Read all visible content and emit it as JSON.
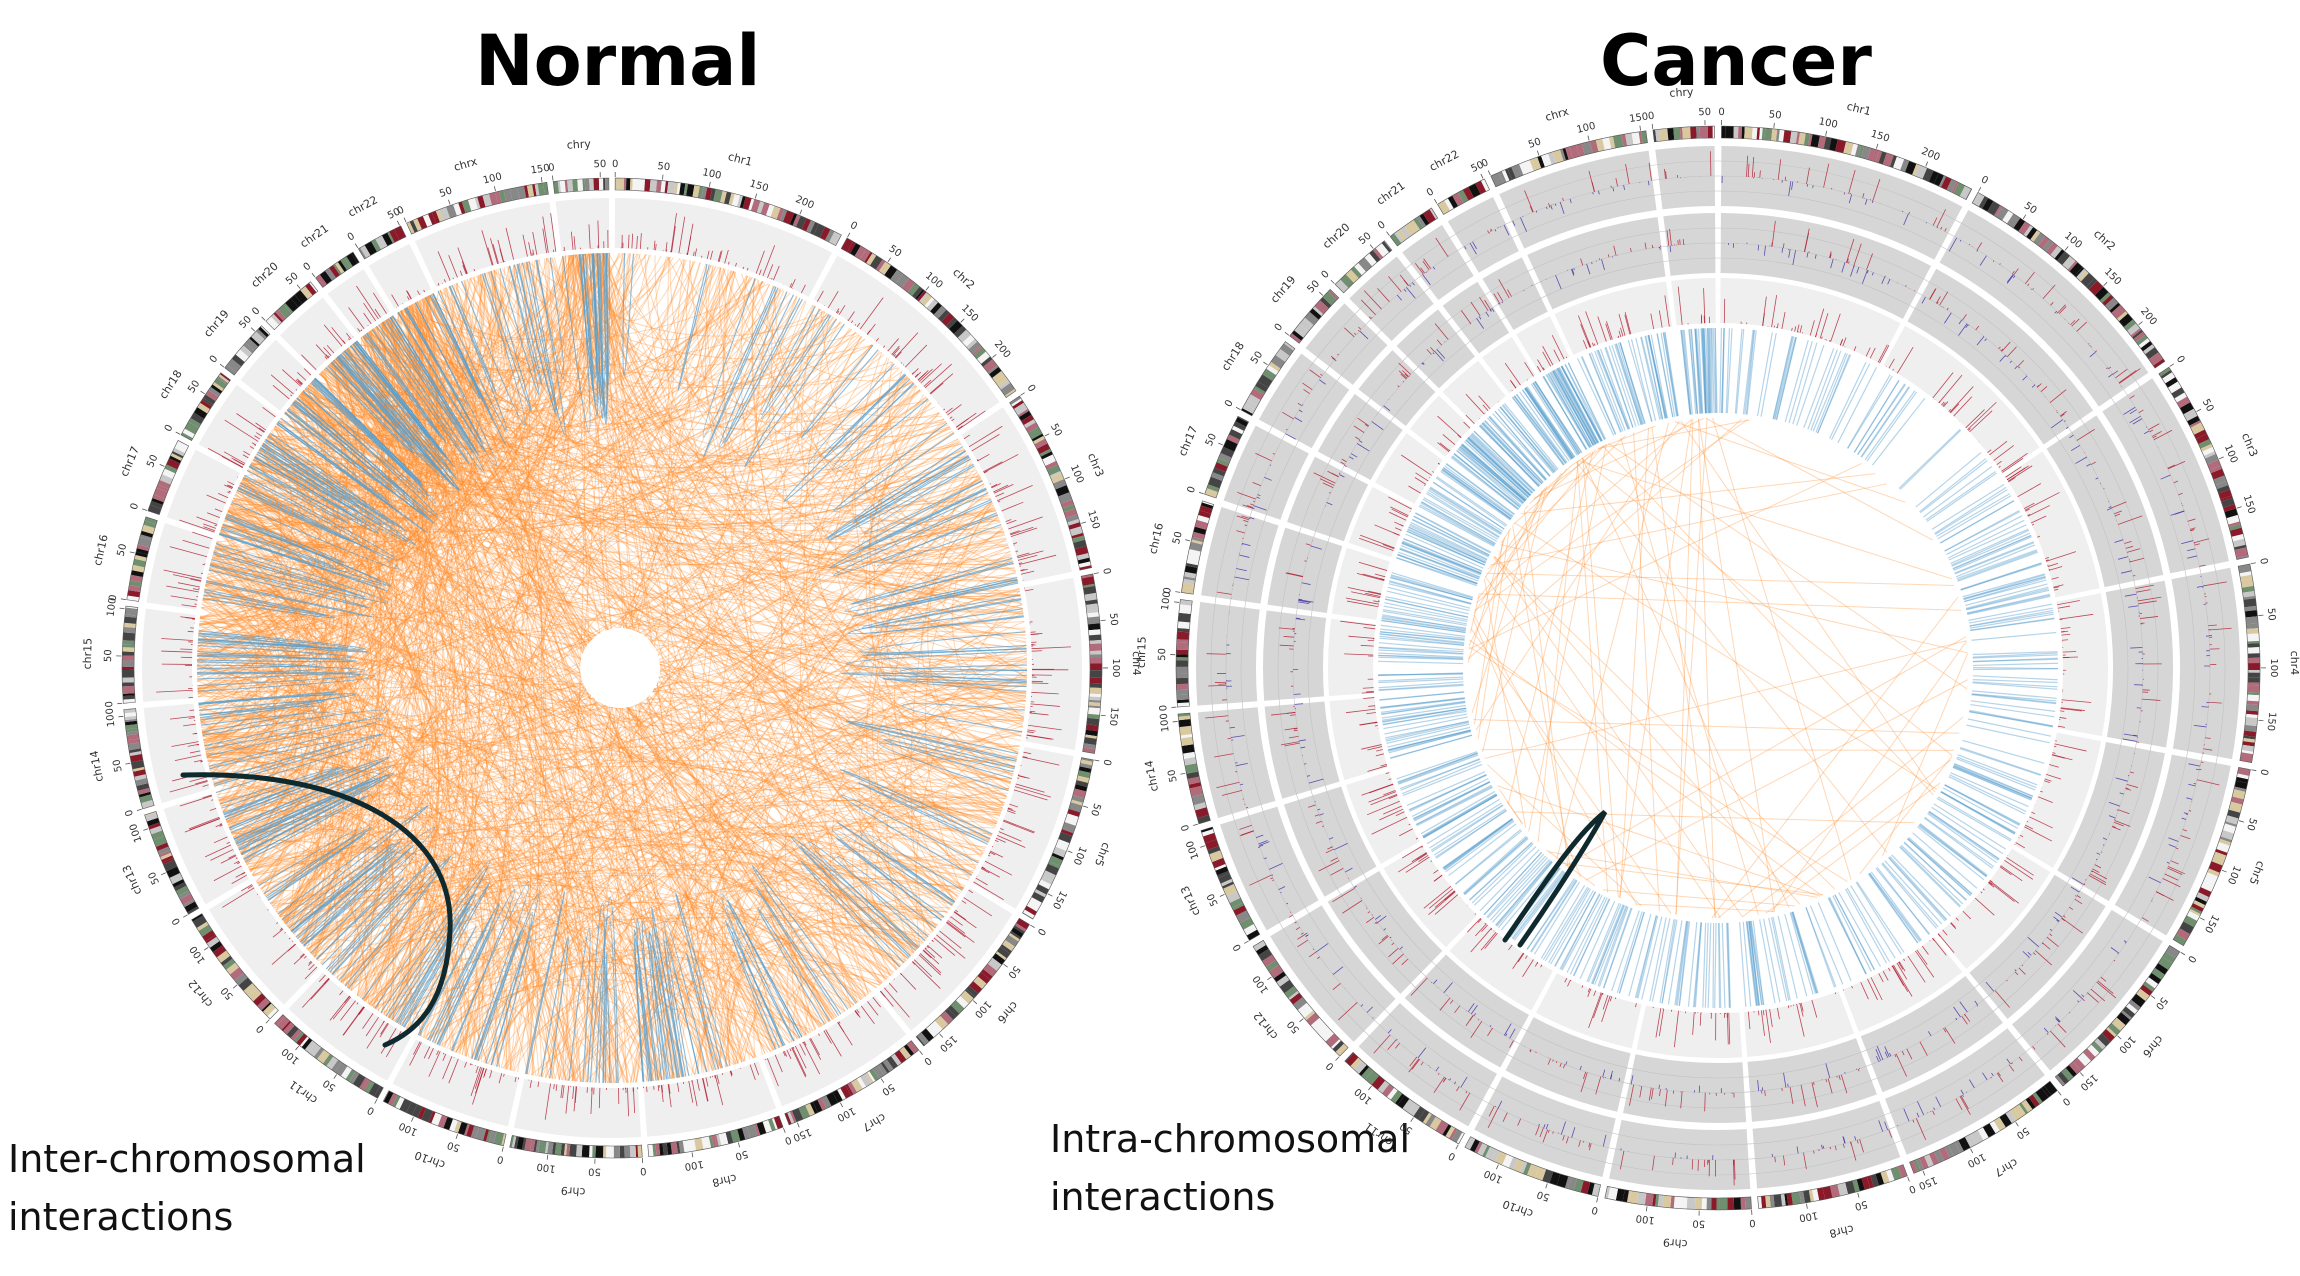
{
  "titles": {
    "normal": "Normal",
    "cancer": "Cancer"
  },
  "captions": {
    "inter": [
      "Inter-chromosomal",
      "interactions"
    ],
    "intra": [
      "Intra-chromosomal",
      "interactions"
    ]
  },
  "chromosomes": [
    {
      "name": "chr1",
      "size": 249,
      "ticks": [
        0,
        50,
        100,
        150,
        200
      ]
    },
    {
      "name": "chr2",
      "size": 243,
      "ticks": [
        0,
        50,
        100,
        150,
        200
      ]
    },
    {
      "name": "chr3",
      "size": 198,
      "ticks": [
        0,
        50,
        100,
        150
      ]
    },
    {
      "name": "chr4",
      "size": 191,
      "ticks": [
        0,
        50,
        100,
        150
      ]
    },
    {
      "name": "chr5",
      "size": 181,
      "ticks": [
        0,
        50,
        100,
        150
      ]
    },
    {
      "name": "chr6",
      "size": 171,
      "ticks": [
        0,
        50,
        100,
        150
      ]
    },
    {
      "name": "chr7",
      "size": 159,
      "ticks": [
        0,
        50,
        100,
        150
      ]
    },
    {
      "name": "chr8",
      "size": 146,
      "ticks": [
        0,
        50,
        100
      ]
    },
    {
      "name": "chr9",
      "size": 141,
      "ticks": [
        0,
        50,
        100
      ]
    },
    {
      "name": "chr10",
      "size": 136,
      "ticks": [
        0,
        50,
        100
      ]
    },
    {
      "name": "chr11",
      "size": 135,
      "ticks": [
        0,
        50,
        100
      ]
    },
    {
      "name": "chr12",
      "size": 134,
      "ticks": [
        0,
        50,
        100
      ]
    },
    {
      "name": "chr13",
      "size": 115,
      "ticks": [
        0,
        50,
        100
      ]
    },
    {
      "name": "chr14",
      "size": 107,
      "ticks": [
        0,
        50,
        100
      ]
    },
    {
      "name": "chr15",
      "size": 103,
      "ticks": [
        0,
        50,
        100
      ]
    },
    {
      "name": "chr16",
      "size": 90,
      "ticks": [
        0,
        50
      ]
    },
    {
      "name": "chr17",
      "size": 81,
      "ticks": [
        0,
        50
      ]
    },
    {
      "name": "chr18",
      "size": 78,
      "ticks": [
        0,
        50
      ]
    },
    {
      "name": "chr19",
      "size": 59,
      "ticks": [
        0,
        50
      ]
    },
    {
      "name": "chr20",
      "size": 63,
      "ticks": [
        0,
        50
      ]
    },
    {
      "name": "chr21",
      "size": 48,
      "ticks": [
        0
      ]
    },
    {
      "name": "chr22",
      "size": 51,
      "ticks": [
        0,
        50
      ]
    },
    {
      "name": "chrx",
      "size": 155,
      "ticks": [
        0,
        50,
        100,
        150
      ]
    },
    {
      "name": "chry",
      "size": 59,
      "ticks": [
        0,
        50
      ]
    }
  ],
  "colors": {
    "inter_link": "#ff8c2a",
    "intra_link": "#5aa0cf",
    "highlight_arc": "#0f2a2e",
    "track_light": "#efefef",
    "track_dark": "#d6d6d6",
    "gain_bar": "#b11a2e",
    "loss_bar": "#3b2ca8",
    "karyotype_palette": [
      "#111111",
      "#444444",
      "#888888",
      "#c8c8c8",
      "#f4f4f4",
      "#6f8f6f",
      "#8a1a2a",
      "#b26b7a",
      "#d9c9a0"
    ]
  }
}
